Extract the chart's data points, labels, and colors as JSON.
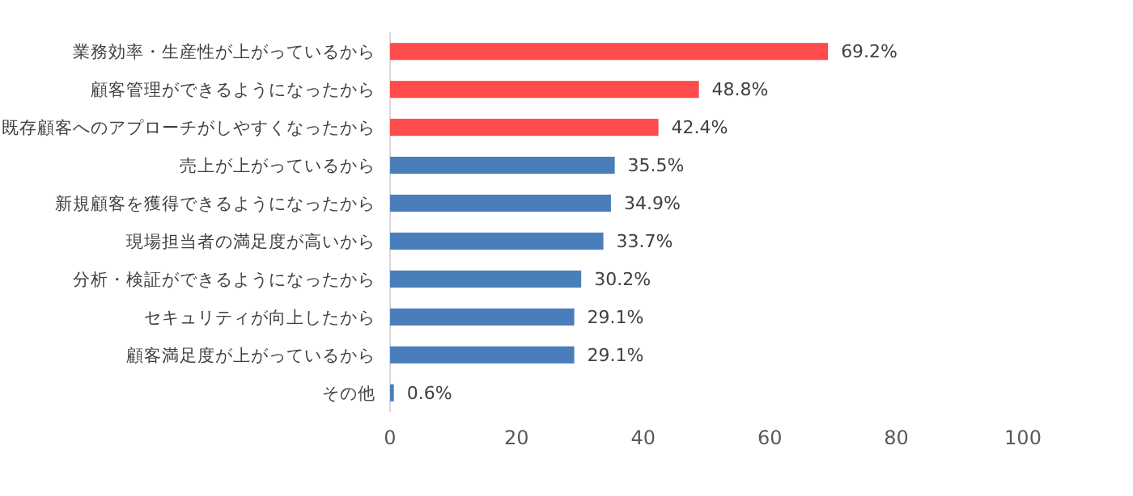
{
  "chart_data": {
    "type": "bar",
    "orientation": "horizontal",
    "categories": [
      "業務効率・生産性が上がっているから",
      "顧客管理ができるようになったから",
      "既存顧客へのアプローチがしやすくなったから",
      "売上が上がっているから",
      "新規顧客を獲得できるようになったから",
      "現場担当者の満足度が高いから",
      "分析・検証ができるようになったから",
      "セキュリティが向上したから",
      "顧客満足度が上がっているから",
      "その他"
    ],
    "values": [
      69.2,
      48.8,
      42.4,
      35.5,
      34.9,
      33.7,
      30.2,
      29.1,
      29.1,
      0.6
    ],
    "value_labels": [
      "69.2%",
      "48.8%",
      "42.4%",
      "35.5%",
      "34.9%",
      "33.7%",
      "30.2%",
      "29.1%",
      "29.1%",
      "0.6%"
    ],
    "colors": [
      "#ff4b4b",
      "#ff4b4b",
      "#ff4b4b",
      "#4a7ebb",
      "#4a7ebb",
      "#4a7ebb",
      "#4a7ebb",
      "#4a7ebb",
      "#4a7ebb",
      "#4a7ebb"
    ],
    "xlim": [
      0,
      100
    ],
    "xticks": [
      0,
      20,
      40,
      60,
      80,
      100
    ],
    "grid": false
  }
}
